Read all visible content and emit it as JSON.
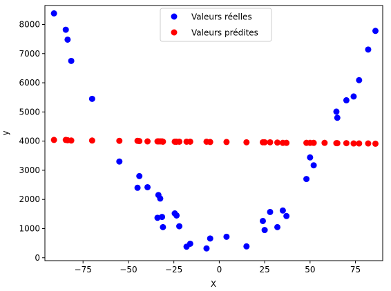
{
  "chart_data": {
    "type": "scatter",
    "title": "",
    "xlabel": "X",
    "ylabel": "y",
    "xlim": [
      -96,
      90
    ],
    "ylim": [
      -100,
      8650
    ],
    "xticks": [
      -75,
      -50,
      -25,
      0,
      25,
      50,
      75
    ],
    "xtick_labels": [
      "−75",
      "−50",
      "−25",
      "0",
      "25",
      "50",
      "75"
    ],
    "yticks": [
      0,
      1000,
      2000,
      3000,
      4000,
      5000,
      6000,
      7000,
      8000
    ],
    "ytick_labels": [
      "0",
      "1000",
      "2000",
      "3000",
      "4000",
      "5000",
      "6000",
      "7000",
      "8000"
    ],
    "grid": false,
    "legend_position": "upper-center",
    "series": [
      {
        "name": "Valeurs réelles",
        "color": "#0000ff",
        "points": [
          [
            -91,
            8380
          ],
          [
            -84.5,
            7820
          ],
          [
            -83.5,
            7480
          ],
          [
            -81.5,
            6750
          ],
          [
            -70,
            5450
          ],
          [
            -55,
            3300
          ],
          [
            -44,
            2800
          ],
          [
            -45,
            2400
          ],
          [
            -39.5,
            2420
          ],
          [
            -33.5,
            2150
          ],
          [
            -32.5,
            2030
          ],
          [
            -34,
            1370
          ],
          [
            -31.5,
            1400
          ],
          [
            -31,
            1050
          ],
          [
            -24.5,
            1520
          ],
          [
            -23.5,
            1450
          ],
          [
            -22,
            1080
          ],
          [
            -18,
            380
          ],
          [
            -16,
            480
          ],
          [
            -7,
            320
          ],
          [
            -5,
            660
          ],
          [
            4,
            720
          ],
          [
            15,
            390
          ],
          [
            24,
            1260
          ],
          [
            25,
            950
          ],
          [
            28,
            1570
          ],
          [
            32,
            1050
          ],
          [
            35,
            1620
          ],
          [
            37,
            1430
          ],
          [
            48,
            2700
          ],
          [
            50,
            3440
          ],
          [
            52,
            3170
          ],
          [
            64.5,
            5010
          ],
          [
            65,
            4800
          ],
          [
            70,
            5400
          ],
          [
            74,
            5530
          ],
          [
            77,
            6090
          ],
          [
            82,
            7140
          ],
          [
            86,
            7780
          ]
        ]
      },
      {
        "name": "Valeurs prédites",
        "color": "#ff0000",
        "points": [
          [
            -91,
            4040
          ],
          [
            -84.5,
            4040
          ],
          [
            -83.5,
            4030
          ],
          [
            -81.5,
            4020
          ],
          [
            -70,
            4020
          ],
          [
            -55,
            4010
          ],
          [
            -44,
            4000
          ],
          [
            -45,
            4010
          ],
          [
            -39.5,
            3990
          ],
          [
            -33.5,
            3990
          ],
          [
            -32.5,
            3990
          ],
          [
            -34,
            3990
          ],
          [
            -31.5,
            3990
          ],
          [
            -31,
            3980
          ],
          [
            -24.5,
            3980
          ],
          [
            -23.5,
            3980
          ],
          [
            -22,
            3980
          ],
          [
            -18,
            3980
          ],
          [
            -16,
            3980
          ],
          [
            -7,
            3980
          ],
          [
            -5,
            3970
          ],
          [
            4,
            3970
          ],
          [
            15,
            3960
          ],
          [
            24,
            3960
          ],
          [
            25,
            3960
          ],
          [
            28,
            3960
          ],
          [
            32,
            3950
          ],
          [
            35,
            3940
          ],
          [
            37,
            3940
          ],
          [
            48,
            3940
          ],
          [
            50,
            3940
          ],
          [
            52,
            3940
          ],
          [
            58,
            3940
          ],
          [
            64.5,
            3930
          ],
          [
            65,
            3930
          ],
          [
            70,
            3930
          ],
          [
            74,
            3920
          ],
          [
            77,
            3920
          ],
          [
            82,
            3920
          ],
          [
            86,
            3910
          ]
        ]
      }
    ]
  }
}
